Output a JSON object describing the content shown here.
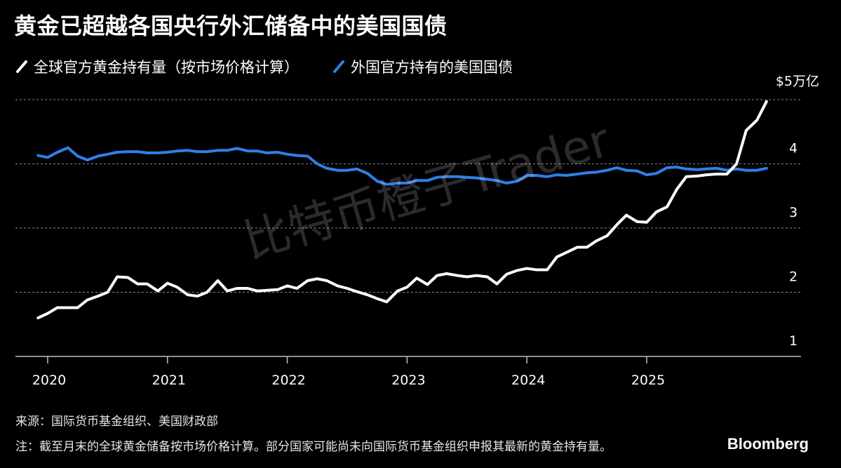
{
  "title": "黄金已超越各国央行外汇储备中的美国国债",
  "legend": [
    {
      "label": "全球官方黄金持有量（按市场价格计算）",
      "color": "#ffffff",
      "icon": "slash-line-icon"
    },
    {
      "label": "外国官方持有的美国国债",
      "color": "#2f7fe8",
      "icon": "slash-line-icon"
    }
  ],
  "watermark": "比特币橙子Trader",
  "source": "来源：国际货币基金组织、美国财政部",
  "note": "注：截至月末的全球黄金储备按市场价格计算。部分国家可能尚未向国际货币基金组织申报其最新的黄金持有量。",
  "brand": "Bloomberg",
  "chart_data": {
    "type": "line",
    "title": "黄金已超越各国央行外汇储备中的美国国债",
    "y_unit_label": "$5万亿",
    "y_ticks": [
      1,
      2,
      3,
      4,
      5
    ],
    "y_tick_labels": [
      "1",
      "2",
      "3",
      "4",
      "$5万亿"
    ],
    "ylim": [
      1,
      5
    ],
    "x_ticks": [
      2020,
      2021,
      2022,
      2023,
      2024,
      2025
    ],
    "x_tick_labels": [
      "2020",
      "2021",
      "2022",
      "2023",
      "2024",
      "2025"
    ],
    "xlim": [
      2019.75,
      2026.3
    ],
    "grid": true,
    "legend_position": "top-left",
    "series": [
      {
        "name": "全球官方黄金持有量（按市场价格计算）",
        "color": "#ffffff",
        "x": [
          2019.92,
          2020.0,
          2020.08,
          2020.17,
          2020.25,
          2020.33,
          2020.42,
          2020.5,
          2020.58,
          2020.67,
          2020.75,
          2020.83,
          2020.92,
          2021.0,
          2021.08,
          2021.17,
          2021.25,
          2021.33,
          2021.42,
          2021.5,
          2021.58,
          2021.67,
          2021.75,
          2021.83,
          2021.92,
          2022.0,
          2022.08,
          2022.17,
          2022.25,
          2022.33,
          2022.42,
          2022.5,
          2022.58,
          2022.67,
          2022.75,
          2022.83,
          2022.92,
          2023.0,
          2023.08,
          2023.17,
          2023.25,
          2023.33,
          2023.42,
          2023.5,
          2023.58,
          2023.67,
          2023.75,
          2023.83,
          2023.92,
          2024.0,
          2024.08,
          2024.17,
          2024.25,
          2024.33,
          2024.42,
          2024.5,
          2024.58,
          2024.67,
          2024.75,
          2024.83,
          2024.92,
          2025.0,
          2025.08,
          2025.17,
          2025.25,
          2025.33,
          2025.42,
          2025.5,
          2025.58,
          2025.67,
          2025.75,
          2025.83,
          2025.92,
          2026.0
        ],
        "values": [
          1.6,
          1.67,
          1.76,
          1.76,
          1.76,
          1.88,
          1.94,
          2.0,
          2.24,
          2.23,
          2.13,
          2.13,
          2.02,
          2.14,
          2.08,
          1.96,
          1.94,
          2.0,
          2.18,
          2.02,
          2.06,
          2.06,
          2.02,
          2.03,
          2.04,
          2.1,
          2.06,
          2.18,
          2.21,
          2.18,
          2.1,
          2.06,
          2.01,
          1.96,
          1.9,
          1.85,
          2.02,
          2.08,
          2.22,
          2.12,
          2.26,
          2.29,
          2.26,
          2.24,
          2.26,
          2.24,
          2.13,
          2.28,
          2.34,
          2.37,
          2.35,
          2.35,
          2.55,
          2.62,
          2.7,
          2.7,
          2.8,
          2.88,
          3.05,
          3.2,
          3.1,
          3.09,
          3.25,
          3.33,
          3.6,
          3.8,
          3.81,
          3.83,
          3.84,
          3.84,
          4.0,
          4.52,
          4.68,
          4.97
        ]
      },
      {
        "name": "外国官方持有的美国国债",
        "color": "#2f7fe8",
        "x": [
          2019.92,
          2020.0,
          2020.08,
          2020.17,
          2020.25,
          2020.33,
          2020.42,
          2020.5,
          2020.58,
          2020.67,
          2020.75,
          2020.83,
          2020.92,
          2021.0,
          2021.08,
          2021.17,
          2021.25,
          2021.33,
          2021.42,
          2021.5,
          2021.58,
          2021.67,
          2021.75,
          2021.83,
          2021.92,
          2022.0,
          2022.08,
          2022.17,
          2022.25,
          2022.33,
          2022.42,
          2022.5,
          2022.58,
          2022.67,
          2022.75,
          2022.83,
          2022.92,
          2023.0,
          2023.08,
          2023.17,
          2023.25,
          2023.33,
          2023.42,
          2023.5,
          2023.58,
          2023.67,
          2023.75,
          2023.83,
          2023.92,
          2024.0,
          2024.08,
          2024.17,
          2024.25,
          2024.33,
          2024.42,
          2024.5,
          2024.58,
          2024.67,
          2024.75,
          2024.83,
          2024.92,
          2025.0,
          2025.08,
          2025.17,
          2025.25,
          2025.33,
          2025.42,
          2025.5,
          2025.58,
          2025.67,
          2025.75,
          2025.83,
          2025.92,
          2026.0
        ],
        "values": [
          4.13,
          4.1,
          4.18,
          4.25,
          4.12,
          4.06,
          4.12,
          4.15,
          4.18,
          4.19,
          4.19,
          4.17,
          4.17,
          4.18,
          4.2,
          4.21,
          4.19,
          4.19,
          4.21,
          4.21,
          4.24,
          4.2,
          4.2,
          4.17,
          4.18,
          4.15,
          4.13,
          4.12,
          4.0,
          3.93,
          3.9,
          3.9,
          3.92,
          3.85,
          3.73,
          3.68,
          3.7,
          3.7,
          3.74,
          3.74,
          3.79,
          3.8,
          3.8,
          3.79,
          3.78,
          3.76,
          3.74,
          3.7,
          3.73,
          3.82,
          3.82,
          3.8,
          3.83,
          3.82,
          3.84,
          3.86,
          3.87,
          3.9,
          3.94,
          3.9,
          3.89,
          3.83,
          3.85,
          3.94,
          3.95,
          3.92,
          3.91,
          3.92,
          3.93,
          3.9,
          3.92,
          3.9,
          3.9,
          3.93
        ]
      }
    ]
  }
}
